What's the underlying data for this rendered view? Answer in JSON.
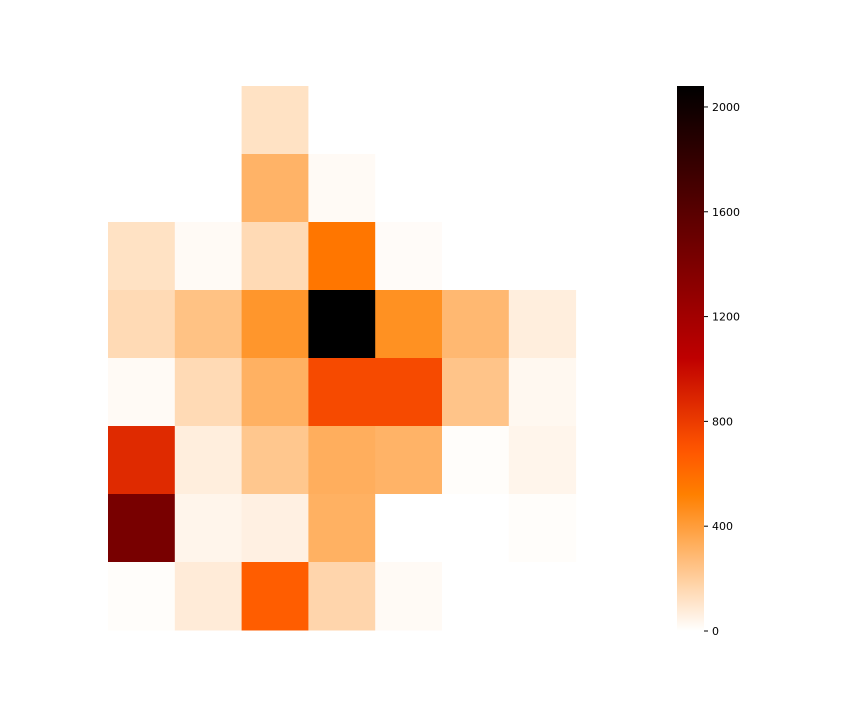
{
  "chart_data": {
    "type": "heatmap",
    "title": "",
    "xlabel": "",
    "ylabel": "",
    "rows": 8,
    "cols": 7,
    "values": [
      [
        0,
        0,
        120,
        0,
        0,
        0,
        0
      ],
      [
        0,
        0,
        310,
        20,
        0,
        0,
        0
      ],
      [
        120,
        20,
        150,
        560,
        15,
        0,
        0
      ],
      [
        150,
        250,
        430,
        2080,
        450,
        290,
        70
      ],
      [
        20,
        150,
        320,
        740,
        740,
        240,
        30
      ],
      [
        870,
        70,
        230,
        330,
        310,
        10,
        40
      ],
      [
        1430,
        40,
        60,
        320,
        0,
        0,
        10
      ],
      [
        10,
        80,
        660,
        170,
        20,
        0,
        0
      ]
    ],
    "colormap": "gist_heat_r",
    "colorbar": {
      "vmin": 0,
      "vmax": 2080,
      "ticks": [
        0,
        400,
        800,
        1200,
        1600,
        2000
      ],
      "tick_labels": [
        "0",
        "400",
        "800",
        "1200",
        "1600",
        "2000"
      ]
    },
    "axes_visible": false,
    "grid": false
  }
}
